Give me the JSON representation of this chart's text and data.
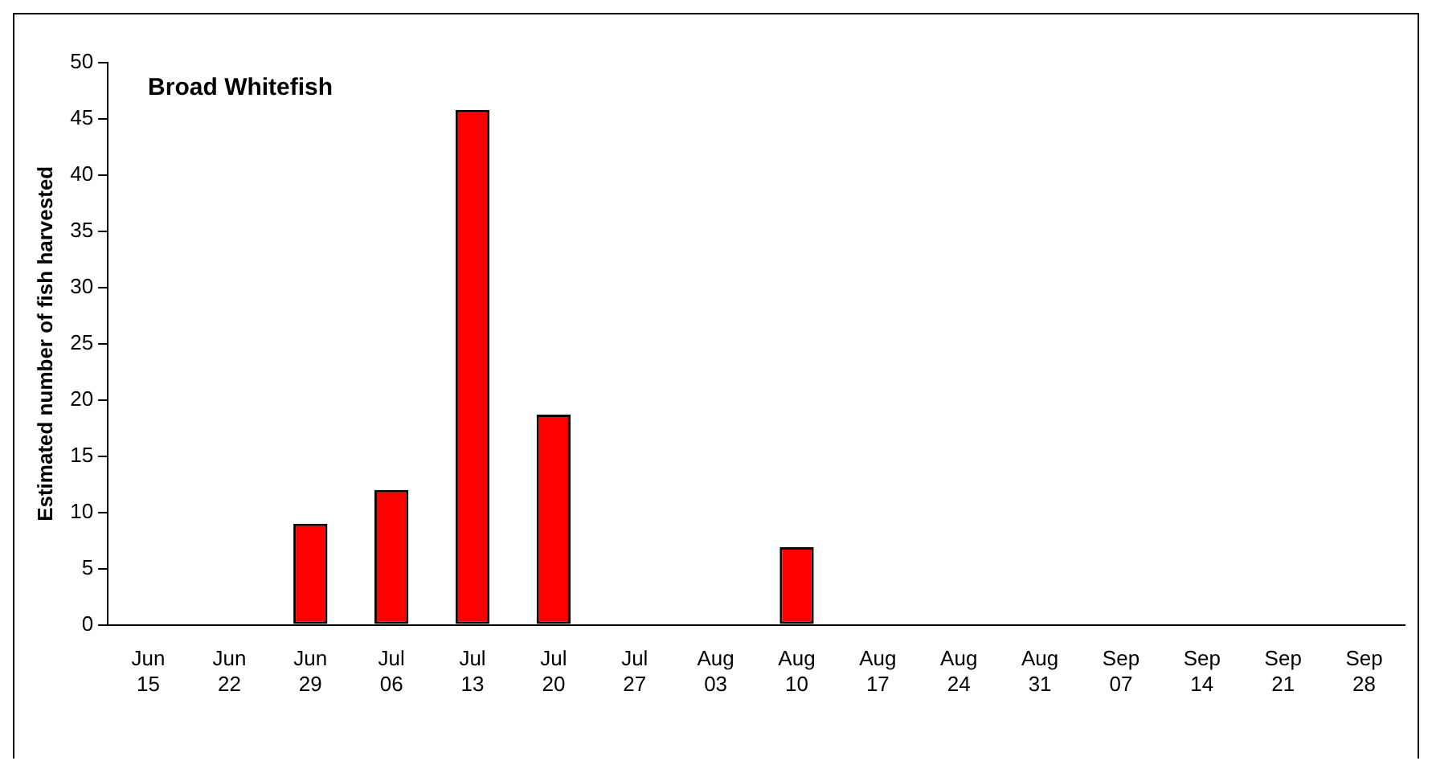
{
  "chart_data": {
    "type": "bar",
    "title": "Broad Whitefish",
    "ylabel": "Estimated number of fish harvested",
    "categories": [
      "Jun 15",
      "Jun 22",
      "Jun 29",
      "Jul 06",
      "Jul 13",
      "Jul 20",
      "Jul 27",
      "Aug 03",
      "Aug 10",
      "Aug 17",
      "Aug 24",
      "Aug 31",
      "Sep 07",
      "Sep 14",
      "Sep 21",
      "Sep 28"
    ],
    "values": [
      0,
      0,
      9,
      12,
      45.8,
      18.7,
      0,
      0,
      6.9,
      0,
      0,
      0,
      0,
      0,
      0,
      0
    ],
    "color": "#ff0000",
    "ylim": [
      0,
      50
    ],
    "yticks": [
      0,
      5,
      10,
      15,
      20,
      25,
      30,
      35,
      40,
      45,
      50
    ],
    "grid": false,
    "legend": false
  }
}
